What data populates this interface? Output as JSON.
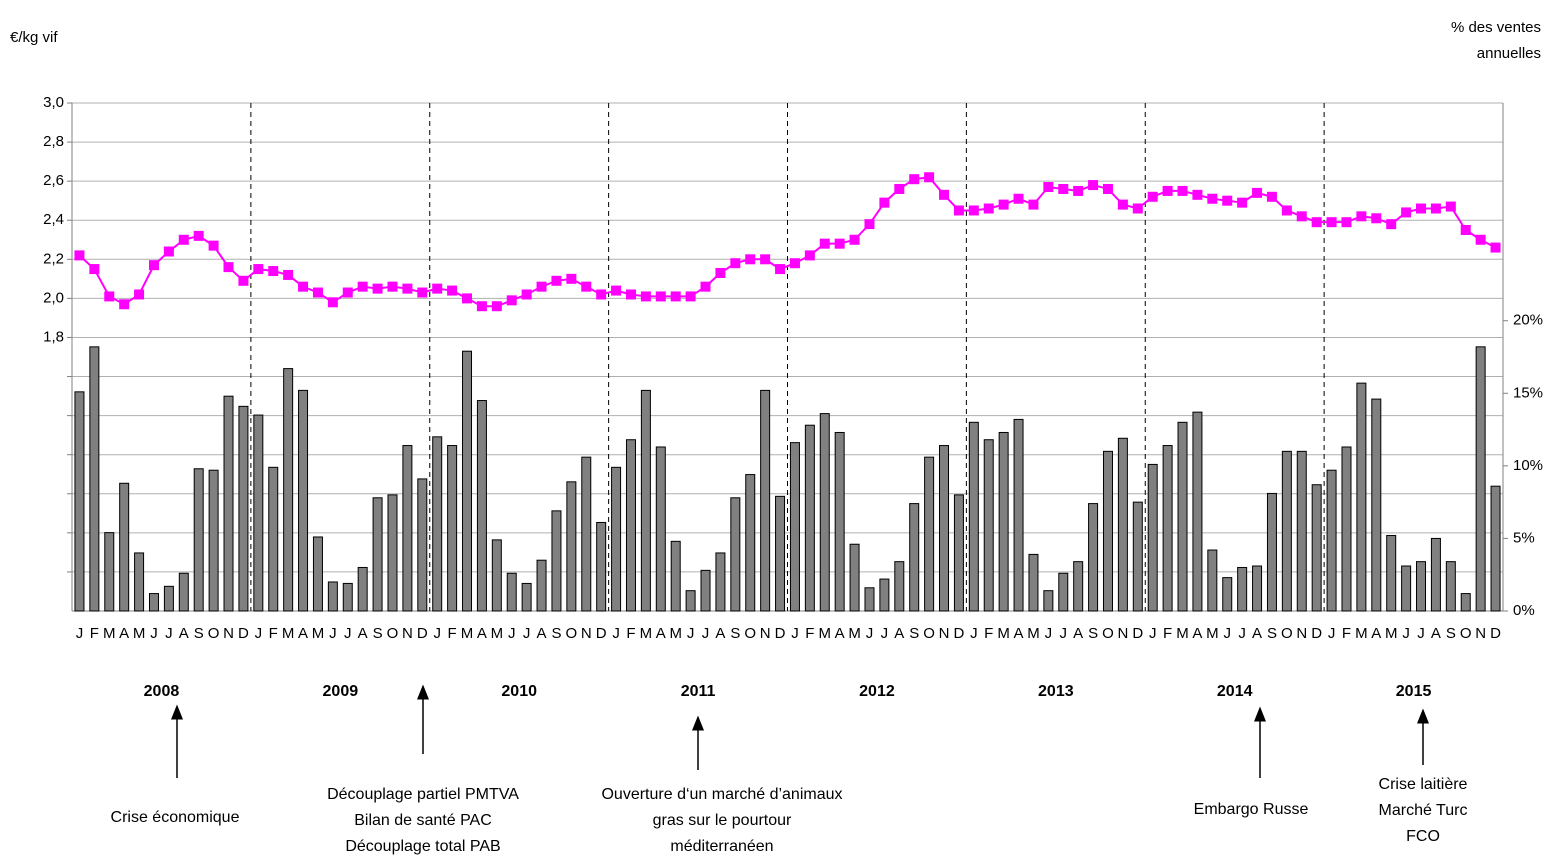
{
  "chart_data": {
    "type": "bar_line",
    "y_label": "€/kg vif",
    "y2_label": [
      "% des ventes",
      "annuelles"
    ],
    "categories": [
      "J",
      "F",
      "M",
      "A",
      "M",
      "J",
      "J",
      "A",
      "S",
      "O",
      "N",
      "D",
      "J",
      "F",
      "M",
      "A",
      "M",
      "J",
      "J",
      "A",
      "S",
      "O",
      "N",
      "D",
      "J",
      "F",
      "M",
      "A",
      "M",
      "J",
      "J",
      "A",
      "S",
      "O",
      "N",
      "D",
      "J",
      "F",
      "M",
      "A",
      "M",
      "J",
      "J",
      "A",
      "S",
      "O",
      "N",
      "D",
      "J",
      "F",
      "M",
      "A",
      "M",
      "J",
      "J",
      "A",
      "S",
      "O",
      "N",
      "D",
      "J",
      "F",
      "M",
      "A",
      "M",
      "J",
      "J",
      "A",
      "S",
      "O",
      "N",
      "D",
      "J",
      "F",
      "M",
      "A",
      "M",
      "J",
      "J",
      "A",
      "S",
      "O",
      "N",
      "D",
      "J",
      "F",
      "M",
      "A",
      "M",
      "J",
      "J",
      "A",
      "S",
      "O",
      "N",
      "D"
    ],
    "years": [
      "2008",
      "2009",
      "2010",
      "2011",
      "2012",
      "2013",
      "2014",
      "2015"
    ],
    "series": [
      {
        "type": "bar",
        "axis": "y2",
        "color": "#808080",
        "values": [
          15.1,
          18.2,
          5.4,
          8.8,
          4.0,
          1.2,
          1.7,
          2.6,
          9.8,
          9.7,
          14.8,
          14.1,
          13.5,
          9.9,
          16.7,
          15.2,
          5.1,
          2.0,
          1.9,
          3.0,
          7.8,
          8.0,
          11.4,
          9.1,
          12.0,
          11.4,
          17.9,
          14.5,
          4.9,
          2.6,
          1.9,
          3.5,
          6.9,
          8.9,
          10.6,
          6.1,
          9.9,
          11.8,
          15.2,
          11.3,
          4.8,
          1.4,
          2.8,
          4.0,
          7.8,
          9.4,
          15.2,
          7.9,
          11.6,
          12.8,
          13.6,
          12.3,
          4.6,
          1.6,
          2.2,
          3.4,
          7.4,
          10.6,
          11.4,
          8.0,
          13.0,
          11.8,
          12.3,
          13.2,
          3.9,
          1.4,
          2.6,
          3.4,
          7.4,
          11.0,
          11.9,
          7.5,
          10.1,
          11.4,
          13.0,
          13.7,
          4.2,
          2.3,
          3.0,
          3.1,
          8.1,
          11.0,
          11.0,
          8.7,
          9.7,
          11.3,
          15.7,
          14.6,
          5.2,
          3.1,
          3.4,
          5.0,
          3.4,
          1.2,
          18.2,
          8.6
        ]
      },
      {
        "type": "line",
        "axis": "y",
        "color": "#ff00ff",
        "values": [
          2.22,
          2.15,
          2.01,
          1.97,
          2.02,
          2.17,
          2.24,
          2.3,
          2.32,
          2.27,
          2.16,
          2.09,
          2.15,
          2.14,
          2.12,
          2.06,
          2.03,
          1.98,
          2.03,
          2.06,
          2.05,
          2.06,
          2.05,
          2.03,
          2.05,
          2.04,
          2.0,
          1.96,
          1.96,
          1.99,
          2.02,
          2.06,
          2.09,
          2.1,
          2.06,
          2.02,
          2.04,
          2.02,
          2.01,
          2.01,
          2.01,
          2.01,
          2.06,
          2.13,
          2.18,
          2.2,
          2.2,
          2.15,
          2.18,
          2.22,
          2.28,
          2.28,
          2.3,
          2.38,
          2.49,
          2.56,
          2.61,
          2.62,
          2.53,
          2.45,
          2.45,
          2.46,
          2.48,
          2.51,
          2.48,
          2.57,
          2.56,
          2.55,
          2.58,
          2.56,
          2.48,
          2.46,
          2.52,
          2.55,
          2.55,
          2.53,
          2.51,
          2.5,
          2.49,
          2.54,
          2.52,
          2.45,
          2.42,
          2.39,
          2.39,
          2.39,
          2.42,
          2.41,
          2.38,
          2.44,
          2.46,
          2.46,
          2.47,
          2.35,
          2.3,
          2.26
        ]
      }
    ],
    "ylim": [
      0.4,
      3.0
    ],
    "yticks": [
      {
        "value": 1.8,
        "label": "1,8"
      },
      {
        "value": 2.0,
        "label": "2,0"
      },
      {
        "value": 2.2,
        "label": "2,2"
      },
      {
        "value": 2.4,
        "label": "2,4"
      },
      {
        "value": 2.6,
        "label": "2,6"
      },
      {
        "value": 2.8,
        "label": "2,8"
      },
      {
        "value": 3.0,
        "label": "3,0"
      }
    ],
    "y2lim": [
      0,
      35
    ],
    "y2ticks": [
      {
        "value": 0,
        "label": "0%"
      },
      {
        "value": 5,
        "label": "5%"
      },
      {
        "value": 10,
        "label": "10%"
      },
      {
        "value": 15,
        "label": "15%"
      },
      {
        "value": 20,
        "label": "20%"
      }
    ],
    "grid": true,
    "annotations": [
      {
        "lines": [
          "Crise économique"
        ]
      },
      {
        "lines": [
          "Découplage partiel PMTVA",
          "Bilan de santé PAC",
          "Découplage total PAB"
        ]
      },
      {
        "lines": [
          "Ouverture d‘un marché d’animaux",
          "gras sur le pourtour",
          "méditerranéen"
        ]
      },
      {
        "lines": [
          "Embargo Russe"
        ]
      },
      {
        "lines": [
          "Crise laitière",
          "Marché Turc",
          "FCO"
        ]
      }
    ]
  }
}
